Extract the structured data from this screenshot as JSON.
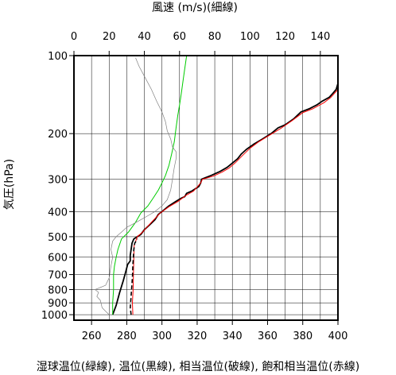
{
  "chart_data": {
    "type": "line",
    "title": "",
    "top_axis_label": "風速 (m/s)(細線)",
    "bottom_axis_label": "湿球温位(緑線), 温位(黒線), 相当温位(破線), 飽和相当温位(赤線)",
    "y_axis_label": "気圧(hPa)",
    "bottom_axis": {
      "min": 250,
      "max": 400,
      "ticks": [
        260,
        280,
        300,
        320,
        340,
        360,
        380,
        400
      ],
      "tick_labels": [
        "260",
        "280",
        "300",
        "320",
        "340",
        "360",
        "380",
        "400"
      ]
    },
    "top_axis": {
      "min": 0,
      "max": 150,
      "ticks": [
        0,
        20,
        40,
        60,
        80,
        100,
        120,
        140
      ],
      "tick_labels": [
        "0",
        "20",
        "40",
        "60",
        "80",
        "100",
        "120",
        "140"
      ]
    },
    "y_axis": {
      "scale": "log",
      "min": 100,
      "max": 1050,
      "ticks": [
        100,
        200,
        300,
        400,
        500,
        600,
        700,
        800,
        900,
        1000
      ],
      "tick_labels": [
        "100",
        "200",
        "300",
        "400",
        "500",
        "600",
        "700",
        "800",
        "900",
        "1000"
      ]
    },
    "grid": true,
    "series": [
      {
        "key": "theta",
        "color": "#000000",
        "axis": "bottom",
        "points": [
          [
            272,
            1000
          ],
          [
            274,
            920
          ],
          [
            276,
            820
          ],
          [
            278,
            740
          ],
          [
            279.5,
            680
          ],
          [
            280.5,
            640
          ],
          [
            282,
            620
          ],
          [
            282,
            590
          ],
          [
            282.5,
            560
          ],
          [
            283,
            530
          ],
          [
            284,
            510
          ],
          [
            286,
            500
          ],
          [
            288,
            490
          ],
          [
            290,
            470
          ],
          [
            293,
            450
          ],
          [
            296,
            430
          ],
          [
            298,
            410
          ],
          [
            300,
            400
          ],
          [
            304,
            380
          ],
          [
            308,
            365
          ],
          [
            311,
            355
          ],
          [
            313,
            350
          ],
          [
            314,
            340
          ],
          [
            317,
            333
          ],
          [
            321,
            320
          ],
          [
            322,
            310
          ],
          [
            322.5,
            300
          ],
          [
            328,
            290
          ],
          [
            333,
            280
          ],
          [
            337,
            270
          ],
          [
            340,
            260
          ],
          [
            343,
            250
          ],
          [
            345,
            240
          ],
          [
            348,
            230
          ],
          [
            352,
            220
          ],
          [
            357,
            210
          ],
          [
            362,
            200
          ],
          [
            366,
            190
          ],
          [
            370,
            185
          ],
          [
            375,
            175
          ],
          [
            379,
            165
          ],
          [
            384,
            160
          ],
          [
            388,
            155
          ],
          [
            391,
            150
          ],
          [
            395,
            145
          ],
          [
            397,
            140
          ],
          [
            399,
            135
          ],
          [
            400,
            128
          ]
        ]
      },
      {
        "key": "theta_es",
        "color": "#ff0000",
        "axis": "bottom",
        "points": [
          [
            283.5,
            1000
          ],
          [
            283.2,
            900
          ],
          [
            283.6,
            800
          ],
          [
            283.8,
            700
          ],
          [
            284,
            600
          ],
          [
            284.2,
            540
          ],
          [
            286,
            500
          ],
          [
            289,
            480
          ],
          [
            294,
            440
          ],
          [
            299,
            405
          ],
          [
            304,
            383
          ],
          [
            309,
            366
          ],
          [
            314,
            345
          ],
          [
            318,
            333
          ],
          [
            322,
            310
          ],
          [
            323,
            300
          ],
          [
            329,
            292
          ],
          [
            334,
            282
          ],
          [
            338,
            272
          ],
          [
            342,
            258
          ],
          [
            346,
            242
          ],
          [
            350,
            228
          ],
          [
            355,
            215
          ],
          [
            361,
            203
          ],
          [
            368,
            190
          ],
          [
            374,
            178
          ],
          [
            380,
            166
          ],
          [
            386,
            160
          ],
          [
            392,
            152
          ],
          [
            396,
            145
          ],
          [
            400,
            135
          ]
        ]
      },
      {
        "key": "theta_e",
        "color": "#000000",
        "dashed": true,
        "axis": "bottom",
        "points": [
          [
            282.5,
            1000
          ],
          [
            282,
            940
          ],
          [
            282.3,
            880
          ],
          [
            282.6,
            820
          ],
          [
            283,
            760
          ],
          [
            283.3,
            700
          ],
          [
            283.5,
            640
          ],
          [
            283.8,
            600
          ],
          [
            284,
            560
          ],
          [
            284.5,
            530
          ],
          [
            286,
            510
          ]
        ]
      },
      {
        "key": "theta_w",
        "color": "#00cc00",
        "axis": "bottom",
        "points": [
          [
            272,
            1000
          ],
          [
            272,
            900
          ],
          [
            272.5,
            800
          ],
          [
            272.5,
            700
          ],
          [
            273,
            650
          ],
          [
            274,
            600
          ],
          [
            275,
            560
          ],
          [
            277,
            510
          ],
          [
            281,
            480
          ],
          [
            285,
            440
          ],
          [
            288,
            405
          ],
          [
            292,
            380
          ],
          [
            295,
            355
          ],
          [
            298,
            330
          ],
          [
            300,
            310
          ],
          [
            302,
            290
          ],
          [
            304,
            265
          ],
          [
            305.5,
            240
          ],
          [
            307,
            215
          ],
          [
            308,
            190
          ],
          [
            309,
            170
          ],
          [
            310,
            155
          ],
          [
            311,
            140
          ],
          [
            312,
            125
          ],
          [
            313,
            112
          ],
          [
            314,
            100
          ]
        ]
      },
      {
        "key": "wind",
        "color": "#808080",
        "axis": "top",
        "points": [
          [
            20,
            1000
          ],
          [
            18,
            970
          ],
          [
            16,
            940
          ],
          [
            15,
            880
          ],
          [
            13,
            850
          ],
          [
            14,
            820
          ],
          [
            12,
            800
          ],
          [
            14,
            790
          ],
          [
            18,
            770
          ],
          [
            20,
            720
          ],
          [
            21,
            650
          ],
          [
            22,
            600
          ],
          [
            21,
            560
          ],
          [
            22,
            520
          ],
          [
            24,
            500
          ],
          [
            27,
            480
          ],
          [
            30,
            460
          ],
          [
            34,
            445
          ],
          [
            38,
            430
          ],
          [
            42,
            415
          ],
          [
            46,
            400
          ],
          [
            50,
            380
          ],
          [
            53,
            360
          ],
          [
            55,
            330
          ],
          [
            56,
            300
          ],
          [
            57,
            270
          ],
          [
            58,
            250
          ],
          [
            58,
            235
          ],
          [
            56,
            225
          ],
          [
            55,
            210
          ],
          [
            53,
            195
          ],
          [
            52,
            180
          ],
          [
            50,
            165
          ],
          [
            47,
            150
          ],
          [
            44,
            135
          ],
          [
            40,
            120
          ],
          [
            37,
            110
          ],
          [
            35,
            102
          ]
        ]
      }
    ]
  }
}
